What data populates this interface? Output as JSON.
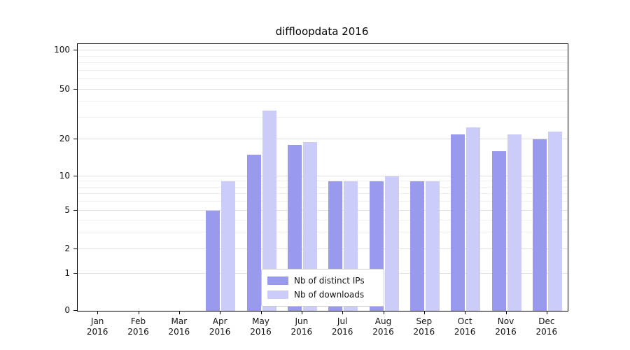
{
  "title": "diffloopdata 2016",
  "chart_data": {
    "type": "bar",
    "title": "diffloopdata 2016",
    "categories": [
      "Jan",
      "Feb",
      "Mar",
      "Apr",
      "May",
      "Jun",
      "Jul",
      "Aug",
      "Sep",
      "Oct",
      "Nov",
      "Dec"
    ],
    "x_tick_label_line2": "2016",
    "series": [
      {
        "name": "Nb of distinct IPs",
        "color": "#9999ee",
        "values": [
          0,
          0,
          0,
          5,
          15,
          18,
          9,
          9,
          9,
          22,
          16,
          20
        ]
      },
      {
        "name": "Nb of downloads",
        "color": "#ccccf9",
        "values": [
          0,
          0,
          0,
          9,
          34,
          19,
          9,
          10,
          9,
          25,
          22,
          23
        ]
      }
    ],
    "yticks": [
      0,
      1,
      2,
      5,
      10,
      20,
      50,
      100
    ],
    "minor_gridline_values": [
      3,
      4,
      6,
      7,
      8,
      9,
      30,
      40,
      60,
      70,
      80,
      90
    ],
    "yscale": "symlog",
    "ylim": [
      0,
      110
    ],
    "grid": true,
    "legend_position": "lower center inside"
  }
}
